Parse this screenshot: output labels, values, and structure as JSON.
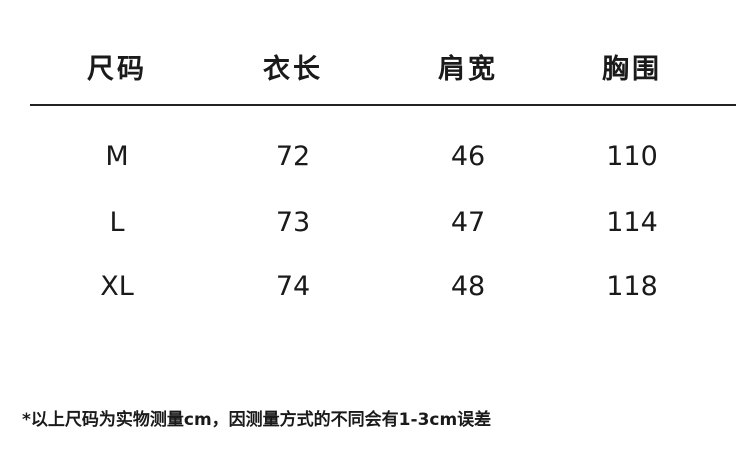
{
  "table": {
    "headers": [
      "尺码",
      "衣长",
      "肩宽",
      "胸围"
    ],
    "rows": [
      [
        "M",
        "72",
        "46",
        "110"
      ],
      [
        "L",
        "73",
        "47",
        "114"
      ],
      [
        "XL",
        "74",
        "48",
        "118"
      ]
    ]
  },
  "footnote": "*以上尺码为实物测量cm，因测量方式的不同会有1-3cm误差"
}
